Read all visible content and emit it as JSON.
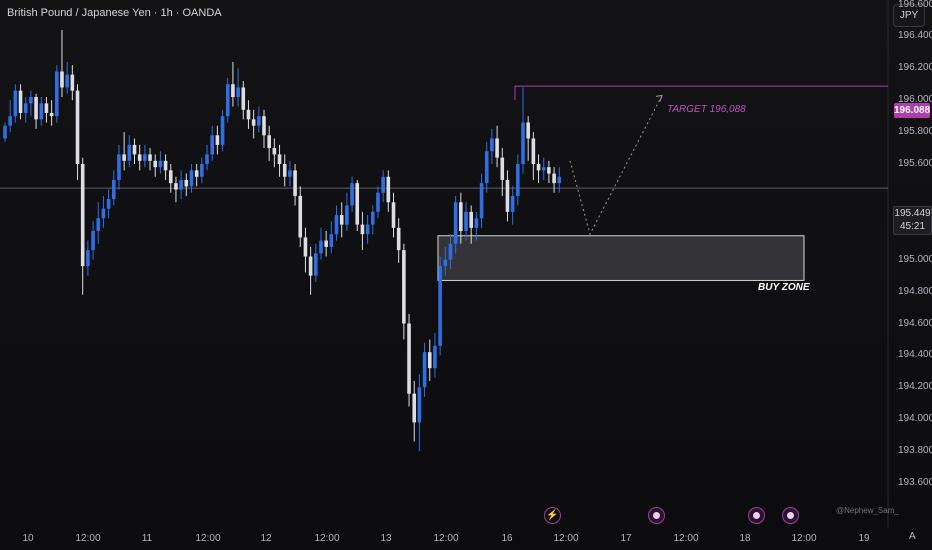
{
  "header": {
    "title": "British Pound / Japanese Yen · 1h · OANDA"
  },
  "currency_button": "JPY",
  "annotations": {
    "target_label": "TARGET 196,088",
    "target_tag": "196.088",
    "price_tag_value": "195.449",
    "price_tag_countdown": "45:21",
    "buy_zone_label": "BUY ZONE",
    "watermark": "@Nephew_Sam_",
    "scale_mode": "A"
  },
  "colors": {
    "up": "#2e6fe6",
    "down": "#dcdee3",
    "target": "#b03db0",
    "zone_fill": "#3b3b3f",
    "events": "#9c3f9c"
  },
  "events_icons": [
    "bolt-icon",
    "dividend-icon",
    "dividend-icon",
    "earnings-icon"
  ],
  "chart_data": {
    "type": "candlestick",
    "title": "British Pound / Japanese Yen · 1h · OANDA",
    "y_axis_labels": [
      "196.600",
      "196.400",
      "196.200",
      "196.000",
      "195.800",
      "195.600",
      "195.400",
      "195.200",
      "195.000",
      "194.800",
      "194.600",
      "194.400",
      "194.200",
      "194.000",
      "193.800",
      "193.600"
    ],
    "x_axis_labels": [
      "10",
      "12:00",
      "11",
      "12:00",
      "12",
      "12:00",
      "13",
      "12:00",
      "16",
      "12:00",
      "17",
      "12:00",
      "18",
      "12:00",
      "19"
    ],
    "ylim": [
      193.6,
      196.62
    ],
    "grid": false,
    "current_price": 195.449,
    "target_price": 196.088,
    "buy_zone": {
      "low": 194.87,
      "high": 195.15
    },
    "projection": [
      {
        "x_label": "16 19:00",
        "y": 195.62
      },
      {
        "x_label": "17 04:00",
        "y": 195.16
      },
      {
        "x_label": "17 14:00",
        "y": 196.03
      }
    ],
    "candle_wick_note": "OHLC estimated from chart",
    "candles": [
      [
        195.76,
        195.84,
        195.74,
        195.86
      ],
      [
        195.84,
        195.9,
        195.8,
        196.0
      ],
      [
        195.9,
        196.06,
        195.86,
        196.1
      ],
      [
        196.06,
        195.92,
        195.88,
        196.1
      ],
      [
        195.92,
        195.98,
        195.86,
        196.02
      ],
      [
        195.98,
        196.02,
        195.9,
        196.06
      ],
      [
        196.02,
        195.88,
        195.82,
        196.04
      ],
      [
        195.88,
        195.98,
        195.84,
        196.02
      ],
      [
        195.98,
        195.92,
        195.86,
        196.02
      ],
      [
        195.92,
        195.9,
        195.84,
        196.0
      ],
      [
        195.9,
        196.18,
        195.86,
        196.22
      ],
      [
        196.18,
        196.08,
        196.02,
        196.44
      ],
      [
        196.08,
        196.16,
        196.04,
        196.24
      ],
      [
        196.16,
        196.06,
        196.0,
        196.22
      ],
      [
        196.06,
        195.6,
        195.5,
        196.1
      ],
      [
        195.6,
        194.96,
        194.78,
        195.64
      ],
      [
        194.96,
        195.06,
        194.9,
        195.12
      ],
      [
        195.06,
        195.18,
        195.0,
        195.24
      ],
      [
        195.18,
        195.26,
        195.1,
        195.36
      ],
      [
        195.26,
        195.32,
        195.2,
        195.4
      ],
      [
        195.32,
        195.38,
        195.26,
        195.44
      ],
      [
        195.38,
        195.5,
        195.34,
        195.56
      ],
      [
        195.5,
        195.66,
        195.44,
        195.72
      ],
      [
        195.66,
        195.62,
        195.56,
        195.8
      ],
      [
        195.62,
        195.72,
        195.58,
        195.78
      ],
      [
        195.72,
        195.66,
        195.6,
        195.76
      ],
      [
        195.66,
        195.62,
        195.56,
        195.72
      ],
      [
        195.62,
        195.66,
        195.58,
        195.72
      ],
      [
        195.66,
        195.62,
        195.56,
        195.7
      ],
      [
        195.62,
        195.58,
        195.52,
        195.66
      ],
      [
        195.58,
        195.62,
        195.54,
        195.68
      ],
      [
        195.62,
        195.56,
        195.5,
        195.66
      ],
      [
        195.56,
        195.48,
        195.42,
        195.6
      ],
      [
        195.48,
        195.44,
        195.36,
        195.52
      ],
      [
        195.44,
        195.5,
        195.38,
        195.56
      ],
      [
        195.5,
        195.46,
        195.4,
        195.54
      ],
      [
        195.46,
        195.56,
        195.42,
        195.6
      ],
      [
        195.56,
        195.52,
        195.46,
        195.6
      ],
      [
        195.52,
        195.6,
        195.48,
        195.64
      ],
      [
        195.6,
        195.66,
        195.56,
        195.72
      ],
      [
        195.66,
        195.78,
        195.62,
        195.84
      ],
      [
        195.78,
        195.72,
        195.66,
        195.84
      ],
      [
        195.72,
        195.9,
        195.68,
        195.94
      ],
      [
        195.9,
        196.1,
        195.86,
        196.14
      ],
      [
        196.1,
        196.02,
        195.96,
        196.24
      ],
      [
        196.02,
        196.08,
        195.96,
        196.2
      ],
      [
        196.08,
        195.94,
        195.88,
        196.12
      ],
      [
        195.94,
        195.88,
        195.82,
        196.0
      ],
      [
        195.88,
        195.84,
        195.76,
        195.94
      ],
      [
        195.84,
        195.9,
        195.8,
        195.96
      ],
      [
        195.9,
        195.78,
        195.7,
        195.94
      ],
      [
        195.78,
        195.7,
        195.62,
        195.84
      ],
      [
        195.7,
        195.66,
        195.58,
        195.76
      ],
      [
        195.66,
        195.6,
        195.52,
        195.72
      ],
      [
        195.6,
        195.52,
        195.46,
        195.66
      ],
      [
        195.52,
        195.56,
        195.46,
        195.62
      ],
      [
        195.56,
        195.4,
        195.34,
        195.6
      ],
      [
        195.4,
        195.14,
        195.08,
        195.46
      ],
      [
        195.14,
        195.02,
        194.92,
        195.2
      ],
      [
        195.02,
        194.9,
        194.78,
        195.08
      ],
      [
        194.9,
        195.04,
        194.86,
        195.1
      ],
      [
        195.04,
        195.12,
        195.0,
        195.2
      ],
      [
        195.12,
        195.08,
        195.02,
        195.18
      ],
      [
        195.08,
        195.16,
        195.04,
        195.24
      ],
      [
        195.16,
        195.28,
        195.12,
        195.34
      ],
      [
        195.28,
        195.22,
        195.14,
        195.36
      ],
      [
        195.22,
        195.34,
        195.18,
        195.42
      ],
      [
        195.34,
        195.48,
        195.3,
        195.52
      ],
      [
        195.48,
        195.22,
        195.18,
        195.5
      ],
      [
        195.22,
        195.16,
        195.06,
        195.3
      ],
      [
        195.16,
        195.22,
        195.1,
        195.28
      ],
      [
        195.22,
        195.3,
        195.16,
        195.34
      ],
      [
        195.3,
        195.42,
        195.26,
        195.46
      ],
      [
        195.42,
        195.52,
        195.36,
        195.56
      ],
      [
        195.52,
        195.36,
        195.3,
        195.56
      ],
      [
        195.36,
        195.2,
        195.14,
        195.42
      ],
      [
        195.2,
        195.06,
        194.98,
        195.26
      ],
      [
        195.06,
        194.6,
        194.5,
        195.1
      ],
      [
        194.6,
        194.16,
        194.08,
        194.66
      ],
      [
        194.16,
        193.98,
        193.86,
        194.24
      ],
      [
        193.98,
        194.2,
        193.8,
        194.28
      ],
      [
        194.2,
        194.42,
        194.14,
        194.48
      ],
      [
        194.42,
        194.32,
        194.24,
        194.5
      ],
      [
        194.32,
        194.46,
        194.26,
        194.54
      ],
      [
        194.46,
        194.96,
        194.4,
        195.02
      ],
      [
        194.96,
        195.0,
        194.9,
        195.08
      ],
      [
        195.0,
        195.1,
        194.94,
        195.16
      ],
      [
        195.1,
        195.36,
        195.04,
        195.4
      ],
      [
        195.36,
        195.18,
        195.1,
        195.42
      ],
      [
        195.18,
        195.3,
        195.12,
        195.36
      ],
      [
        195.3,
        195.2,
        195.1,
        195.34
      ],
      [
        195.2,
        195.26,
        195.12,
        195.3
      ],
      [
        195.26,
        195.48,
        195.2,
        195.54
      ],
      [
        195.48,
        195.68,
        195.42,
        195.74
      ],
      [
        195.68,
        195.76,
        195.6,
        195.82
      ],
      [
        195.76,
        195.64,
        195.58,
        195.84
      ],
      [
        195.64,
        195.5,
        195.4,
        195.7
      ],
      [
        195.5,
        195.3,
        195.24,
        195.56
      ],
      [
        195.3,
        195.4,
        195.22,
        195.46
      ],
      [
        195.4,
        195.6,
        195.34,
        195.66
      ],
      [
        195.6,
        195.86,
        195.54,
        196.08
      ],
      [
        195.86,
        195.76,
        195.62,
        195.9
      ],
      [
        195.76,
        195.6,
        195.5,
        195.8
      ],
      [
        195.6,
        195.56,
        195.48,
        195.66
      ],
      [
        195.56,
        195.58,
        195.5,
        195.64
      ],
      [
        195.58,
        195.54,
        195.48,
        195.62
      ],
      [
        195.54,
        195.48,
        195.42,
        195.58
      ],
      [
        195.48,
        195.52,
        195.42,
        195.58
      ]
    ]
  }
}
